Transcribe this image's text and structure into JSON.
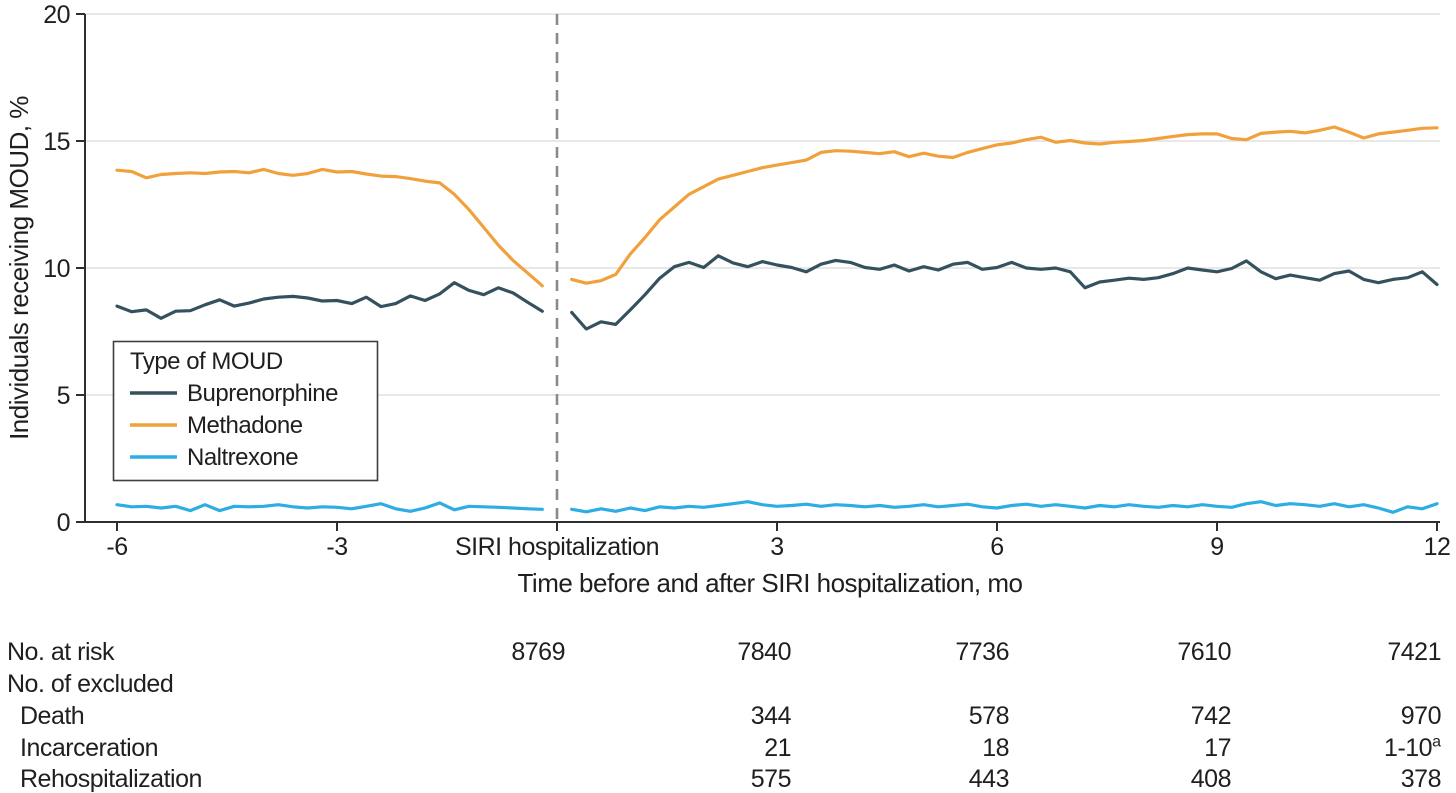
{
  "chart_data": {
    "type": "line",
    "title": "",
    "xlabel": "Time before and after SIRI hospitalization, mo",
    "ylabel": "Individuals receiving MOUD, %",
    "xlim": [
      -6,
      12
    ],
    "ylim": [
      0,
      20
    ],
    "grid": true,
    "y_ticks": [
      0,
      5,
      10,
      15,
      20
    ],
    "x_ticks": [
      {
        "value": -6,
        "label": "-6"
      },
      {
        "value": -3,
        "label": "-3"
      },
      {
        "value": 0,
        "label": "SIRI hospitalization"
      },
      {
        "value": 3,
        "label": "3"
      },
      {
        "value": 6,
        "label": "6"
      },
      {
        "value": 9,
        "label": "9"
      },
      {
        "value": 12,
        "label": "12"
      }
    ],
    "event_line_x": 0,
    "colors": {
      "axis": "#2e2e2e",
      "grid": "#e0e0e0",
      "text": "#1f1f1f",
      "event_line": "#8a8a8a"
    },
    "legend": {
      "title": "Type of MOUD",
      "position": "inside-left"
    },
    "series": [
      {
        "name": "Buprenorphine",
        "color": "#34515d",
        "pre": [
          [
            -6,
            8.5
          ],
          [
            -5.8,
            8.28
          ],
          [
            -5.6,
            8.35
          ],
          [
            -5.4,
            8.02
          ],
          [
            -5.2,
            8.3
          ],
          [
            -5,
            8.32
          ],
          [
            -4.8,
            8.55
          ],
          [
            -4.6,
            8.75
          ],
          [
            -4.4,
            8.5
          ],
          [
            -4.2,
            8.62
          ],
          [
            -4,
            8.78
          ],
          [
            -3.8,
            8.85
          ],
          [
            -3.6,
            8.88
          ],
          [
            -3.4,
            8.82
          ],
          [
            -3.2,
            8.7
          ],
          [
            -3,
            8.72
          ],
          [
            -2.8,
            8.6
          ],
          [
            -2.6,
            8.85
          ],
          [
            -2.4,
            8.48
          ],
          [
            -2.2,
            8.6
          ],
          [
            -2,
            8.9
          ],
          [
            -1.8,
            8.72
          ],
          [
            -1.6,
            8.98
          ],
          [
            -1.4,
            9.42
          ],
          [
            -1.2,
            9.12
          ],
          [
            -1,
            8.95
          ],
          [
            -0.8,
            9.22
          ],
          [
            -0.6,
            9.02
          ],
          [
            -0.4,
            8.65
          ],
          [
            -0.2,
            8.3
          ]
        ],
        "post": [
          [
            0.2,
            8.25
          ],
          [
            0.4,
            7.6
          ],
          [
            0.6,
            7.88
          ],
          [
            0.8,
            7.78
          ],
          [
            1,
            8.35
          ],
          [
            1.2,
            8.95
          ],
          [
            1.4,
            9.6
          ],
          [
            1.6,
            10.05
          ],
          [
            1.8,
            10.22
          ],
          [
            2,
            10.02
          ],
          [
            2.2,
            10.48
          ],
          [
            2.4,
            10.2
          ],
          [
            2.6,
            10.05
          ],
          [
            2.8,
            10.25
          ],
          [
            3,
            10.12
          ],
          [
            3.2,
            10.02
          ],
          [
            3.4,
            9.85
          ],
          [
            3.6,
            10.15
          ],
          [
            3.8,
            10.3
          ],
          [
            4,
            10.22
          ],
          [
            4.2,
            10.02
          ],
          [
            4.4,
            9.95
          ],
          [
            4.6,
            10.12
          ],
          [
            4.8,
            9.88
          ],
          [
            5,
            10.05
          ],
          [
            5.2,
            9.92
          ],
          [
            5.4,
            10.15
          ],
          [
            5.6,
            10.22
          ],
          [
            5.8,
            9.95
          ],
          [
            6,
            10.02
          ],
          [
            6.2,
            10.22
          ],
          [
            6.4,
            10
          ],
          [
            6.6,
            9.95
          ],
          [
            6.8,
            10
          ],
          [
            7,
            9.85
          ],
          [
            7.2,
            9.22
          ],
          [
            7.4,
            9.45
          ],
          [
            7.6,
            9.52
          ],
          [
            7.8,
            9.6
          ],
          [
            8,
            9.55
          ],
          [
            8.2,
            9.62
          ],
          [
            8.4,
            9.78
          ],
          [
            8.6,
            10
          ],
          [
            8.8,
            9.92
          ],
          [
            9,
            9.85
          ],
          [
            9.2,
            9.98
          ],
          [
            9.4,
            10.28
          ],
          [
            9.6,
            9.85
          ],
          [
            9.8,
            9.58
          ],
          [
            10,
            9.72
          ],
          [
            10.2,
            9.62
          ],
          [
            10.4,
            9.52
          ],
          [
            10.6,
            9.78
          ],
          [
            10.8,
            9.88
          ],
          [
            11,
            9.55
          ],
          [
            11.2,
            9.42
          ],
          [
            11.4,
            9.55
          ],
          [
            11.6,
            9.62
          ],
          [
            11.8,
            9.85
          ],
          [
            12,
            9.35
          ]
        ]
      },
      {
        "name": "Methadone",
        "color": "#f1a13c",
        "pre": [
          [
            -6,
            13.85
          ],
          [
            -5.8,
            13.8
          ],
          [
            -5.6,
            13.55
          ],
          [
            -5.4,
            13.68
          ],
          [
            -5.2,
            13.72
          ],
          [
            -5,
            13.75
          ],
          [
            -4.8,
            13.72
          ],
          [
            -4.6,
            13.78
          ],
          [
            -4.4,
            13.8
          ],
          [
            -4.2,
            13.75
          ],
          [
            -4,
            13.88
          ],
          [
            -3.8,
            13.72
          ],
          [
            -3.6,
            13.65
          ],
          [
            -3.4,
            13.72
          ],
          [
            -3.2,
            13.88
          ],
          [
            -3,
            13.78
          ],
          [
            -2.8,
            13.8
          ],
          [
            -2.6,
            13.7
          ],
          [
            -2.4,
            13.62
          ],
          [
            -2.2,
            13.6
          ],
          [
            -2,
            13.52
          ],
          [
            -1.8,
            13.42
          ],
          [
            -1.6,
            13.35
          ],
          [
            -1.4,
            12.9
          ],
          [
            -1.2,
            12.3
          ],
          [
            -1,
            11.6
          ],
          [
            -0.8,
            10.9
          ],
          [
            -0.6,
            10.3
          ],
          [
            -0.4,
            9.8
          ],
          [
            -0.2,
            9.3
          ]
        ],
        "post": [
          [
            0.2,
            9.55
          ],
          [
            0.4,
            9.4
          ],
          [
            0.6,
            9.5
          ],
          [
            0.8,
            9.75
          ],
          [
            1,
            10.55
          ],
          [
            1.2,
            11.2
          ],
          [
            1.4,
            11.9
          ],
          [
            1.6,
            12.4
          ],
          [
            1.8,
            12.9
          ],
          [
            2,
            13.2
          ],
          [
            2.2,
            13.5
          ],
          [
            2.4,
            13.65
          ],
          [
            2.6,
            13.8
          ],
          [
            2.8,
            13.95
          ],
          [
            3,
            14.05
          ],
          [
            3.2,
            14.15
          ],
          [
            3.4,
            14.25
          ],
          [
            3.6,
            14.55
          ],
          [
            3.8,
            14.62
          ],
          [
            4,
            14.6
          ],
          [
            4.2,
            14.55
          ],
          [
            4.4,
            14.5
          ],
          [
            4.6,
            14.58
          ],
          [
            4.8,
            14.38
          ],
          [
            5,
            14.52
          ],
          [
            5.2,
            14.4
          ],
          [
            5.4,
            14.35
          ],
          [
            5.6,
            14.55
          ],
          [
            5.8,
            14.7
          ],
          [
            6,
            14.85
          ],
          [
            6.2,
            14.92
          ],
          [
            6.4,
            15.05
          ],
          [
            6.6,
            15.15
          ],
          [
            6.8,
            14.95
          ],
          [
            7,
            15.02
          ],
          [
            7.2,
            14.92
          ],
          [
            7.4,
            14.88
          ],
          [
            7.6,
            14.95
          ],
          [
            7.8,
            14.98
          ],
          [
            8,
            15.02
          ],
          [
            8.2,
            15.1
          ],
          [
            8.4,
            15.18
          ],
          [
            8.6,
            15.25
          ],
          [
            8.8,
            15.28
          ],
          [
            9,
            15.28
          ],
          [
            9.2,
            15.1
          ],
          [
            9.4,
            15.05
          ],
          [
            9.6,
            15.3
          ],
          [
            9.8,
            15.35
          ],
          [
            10,
            15.38
          ],
          [
            10.2,
            15.32
          ],
          [
            10.4,
            15.42
          ],
          [
            10.6,
            15.55
          ],
          [
            10.8,
            15.35
          ],
          [
            11,
            15.12
          ],
          [
            11.2,
            15.28
          ],
          [
            11.4,
            15.35
          ],
          [
            11.6,
            15.42
          ],
          [
            11.8,
            15.5
          ],
          [
            12,
            15.52
          ]
        ]
      },
      {
        "name": "Naltrexone",
        "color": "#2cade3",
        "pre": [
          [
            -6,
            0.68
          ],
          [
            -5.8,
            0.6
          ],
          [
            -5.6,
            0.62
          ],
          [
            -5.4,
            0.55
          ],
          [
            -5.2,
            0.62
          ],
          [
            -5,
            0.45
          ],
          [
            -4.8,
            0.68
          ],
          [
            -4.6,
            0.45
          ],
          [
            -4.4,
            0.62
          ],
          [
            -4.2,
            0.6
          ],
          [
            -4,
            0.62
          ],
          [
            -3.8,
            0.68
          ],
          [
            -3.6,
            0.6
          ],
          [
            -3.4,
            0.55
          ],
          [
            -3.2,
            0.6
          ],
          [
            -3,
            0.58
          ],
          [
            -2.8,
            0.52
          ],
          [
            -2.6,
            0.62
          ],
          [
            -2.4,
            0.72
          ],
          [
            -2.2,
            0.52
          ],
          [
            -2,
            0.42
          ],
          [
            -1.8,
            0.55
          ],
          [
            -1.6,
            0.75
          ],
          [
            -1.4,
            0.48
          ],
          [
            -1.2,
            0.62
          ],
          [
            -1,
            0.6
          ],
          [
            -0.8,
            0.58
          ],
          [
            -0.6,
            0.55
          ],
          [
            -0.4,
            0.52
          ],
          [
            -0.2,
            0.5
          ]
        ],
        "post": [
          [
            0.2,
            0.5
          ],
          [
            0.4,
            0.4
          ],
          [
            0.6,
            0.52
          ],
          [
            0.8,
            0.42
          ],
          [
            1,
            0.55
          ],
          [
            1.2,
            0.45
          ],
          [
            1.4,
            0.6
          ],
          [
            1.6,
            0.55
          ],
          [
            1.8,
            0.62
          ],
          [
            2,
            0.58
          ],
          [
            2.2,
            0.65
          ],
          [
            2.4,
            0.72
          ],
          [
            2.6,
            0.8
          ],
          [
            2.8,
            0.68
          ],
          [
            3,
            0.62
          ],
          [
            3.2,
            0.65
          ],
          [
            3.4,
            0.7
          ],
          [
            3.6,
            0.62
          ],
          [
            3.8,
            0.68
          ],
          [
            4,
            0.65
          ],
          [
            4.2,
            0.6
          ],
          [
            4.4,
            0.65
          ],
          [
            4.6,
            0.58
          ],
          [
            4.8,
            0.62
          ],
          [
            5,
            0.68
          ],
          [
            5.2,
            0.6
          ],
          [
            5.4,
            0.65
          ],
          [
            5.6,
            0.7
          ],
          [
            5.8,
            0.6
          ],
          [
            6,
            0.55
          ],
          [
            6.2,
            0.65
          ],
          [
            6.4,
            0.7
          ],
          [
            6.6,
            0.62
          ],
          [
            6.8,
            0.68
          ],
          [
            7,
            0.62
          ],
          [
            7.2,
            0.55
          ],
          [
            7.4,
            0.65
          ],
          [
            7.6,
            0.6
          ],
          [
            7.8,
            0.68
          ],
          [
            8,
            0.62
          ],
          [
            8.2,
            0.58
          ],
          [
            8.4,
            0.65
          ],
          [
            8.6,
            0.6
          ],
          [
            8.8,
            0.68
          ],
          [
            9,
            0.62
          ],
          [
            9.2,
            0.58
          ],
          [
            9.4,
            0.72
          ],
          [
            9.6,
            0.8
          ],
          [
            9.8,
            0.65
          ],
          [
            10,
            0.72
          ],
          [
            10.2,
            0.68
          ],
          [
            10.4,
            0.62
          ],
          [
            10.6,
            0.72
          ],
          [
            10.8,
            0.6
          ],
          [
            11,
            0.68
          ],
          [
            11.2,
            0.55
          ],
          [
            11.4,
            0.38
          ],
          [
            11.6,
            0.6
          ],
          [
            11.8,
            0.52
          ],
          [
            12,
            0.72
          ]
        ]
      }
    ]
  },
  "risk_table": {
    "footnote_marker": "a",
    "rows": [
      {
        "label": "No. at risk",
        "values": [
          "8769",
          "7840",
          "7736",
          "7610",
          "7421"
        ]
      },
      {
        "label": "No. of excluded",
        "values": [
          "",
          "",
          "",
          "",
          ""
        ]
      },
      {
        "label": "Death",
        "values": [
          "",
          "344",
          "578",
          "742",
          "970"
        ]
      },
      {
        "label": "Incarceration",
        "values": [
          "",
          "21",
          "18",
          "17",
          "1-10"
        ]
      },
      {
        "label": "Rehospitalization",
        "values": [
          "",
          "575",
          "443",
          "408",
          "378"
        ]
      }
    ]
  }
}
